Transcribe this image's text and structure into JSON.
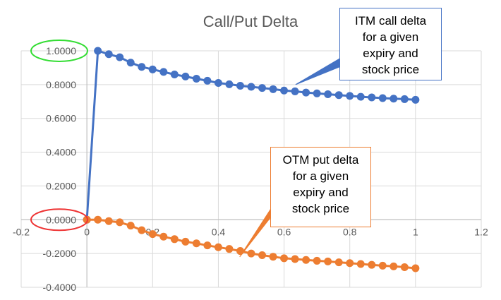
{
  "chart_data": {
    "type": "scatter",
    "title": "Call/Put Delta",
    "xlim": [
      -0.2,
      1.2
    ],
    "ylim": [
      -0.4,
      1.0
    ],
    "x_ticks": [
      "-0.2",
      "0",
      "0.2",
      "0.4",
      "0.6",
      "0.8",
      "1",
      "1.2"
    ],
    "y_ticks": [
      "1.0000",
      "0.8000",
      "0.6000",
      "0.4000",
      "0.2000",
      "0.0000",
      "-0.2000",
      "-0.4000"
    ],
    "grid": true,
    "legend": "none",
    "series": [
      {
        "color": "#4472c4",
        "points": [
          [
            0,
            0
          ],
          [
            0.0333,
            1.0
          ],
          [
            0.0667,
            0.98
          ],
          [
            0.1,
            0.962
          ],
          [
            0.1333,
            0.93
          ],
          [
            0.1667,
            0.905
          ],
          [
            0.2,
            0.89
          ],
          [
            0.2333,
            0.875
          ],
          [
            0.2667,
            0.86
          ],
          [
            0.3,
            0.848
          ],
          [
            0.3333,
            0.835
          ],
          [
            0.3667,
            0.823
          ],
          [
            0.4,
            0.81
          ],
          [
            0.4333,
            0.802
          ],
          [
            0.4667,
            0.793
          ],
          [
            0.5,
            0.787
          ],
          [
            0.5333,
            0.78
          ],
          [
            0.5667,
            0.773
          ],
          [
            0.6,
            0.765
          ],
          [
            0.6333,
            0.76
          ],
          [
            0.6667,
            0.753
          ],
          [
            0.7,
            0.748
          ],
          [
            0.7333,
            0.743
          ],
          [
            0.7667,
            0.738
          ],
          [
            0.8,
            0.733
          ],
          [
            0.8333,
            0.728
          ],
          [
            0.8667,
            0.724
          ],
          [
            0.9,
            0.72
          ],
          [
            0.9333,
            0.717
          ],
          [
            0.9667,
            0.714
          ],
          [
            1.0,
            0.71
          ]
        ]
      },
      {
        "color": "#ed7d31",
        "points": [
          [
            0,
            0
          ],
          [
            0.0333,
            0.0
          ],
          [
            0.0667,
            -0.008
          ],
          [
            0.1,
            -0.015
          ],
          [
            0.1333,
            -0.035
          ],
          [
            0.1667,
            -0.062
          ],
          [
            0.2,
            -0.085
          ],
          [
            0.2333,
            -0.1
          ],
          [
            0.2667,
            -0.115
          ],
          [
            0.3,
            -0.13
          ],
          [
            0.3333,
            -0.14
          ],
          [
            0.3667,
            -0.152
          ],
          [
            0.4,
            -0.163
          ],
          [
            0.4333,
            -0.173
          ],
          [
            0.4667,
            -0.185
          ],
          [
            0.5,
            -0.2
          ],
          [
            0.5333,
            -0.21
          ],
          [
            0.5667,
            -0.219
          ],
          [
            0.6,
            -0.228
          ],
          [
            0.6333,
            -0.233
          ],
          [
            0.6667,
            -0.238
          ],
          [
            0.7,
            -0.243
          ],
          [
            0.7333,
            -0.247
          ],
          [
            0.7667,
            -0.252
          ],
          [
            0.8,
            -0.257
          ],
          [
            0.8333,
            -0.262
          ],
          [
            0.8667,
            -0.267
          ],
          [
            0.9,
            -0.272
          ],
          [
            0.9333,
            -0.276
          ],
          [
            0.9667,
            -0.281
          ],
          [
            1.0,
            -0.287
          ]
        ]
      }
    ],
    "annotations": [
      {
        "id": "call",
        "lines": [
          "ITM call delta",
          "for a given",
          "expiry and",
          "stock price"
        ],
        "color": "#4472c4",
        "points_to": [
          0.635,
          0.8
        ]
      },
      {
        "id": "put",
        "lines": [
          "OTM put delta",
          "for a given",
          "expiry and",
          "stock price"
        ],
        "color": "#ed7d31",
        "points_to": [
          0.465,
          -0.22
        ]
      }
    ],
    "highlight_circles": [
      {
        "label": "1.0000",
        "color": "#33dd33"
      },
      {
        "label": "0.0000",
        "color": "#ee3333"
      }
    ]
  }
}
